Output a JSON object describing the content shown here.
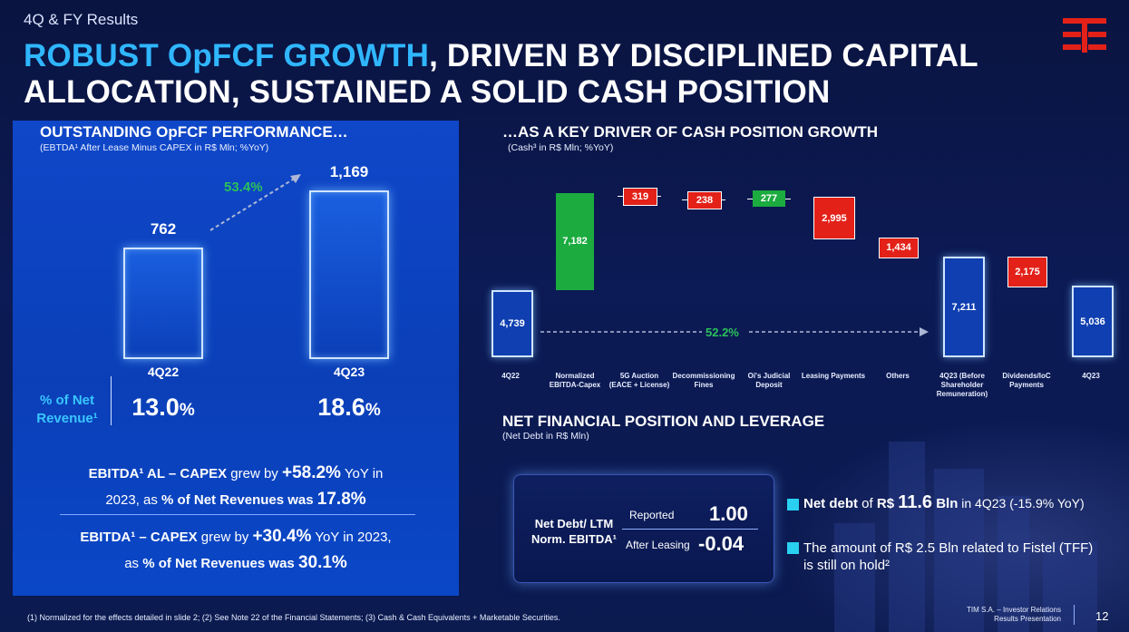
{
  "header": {
    "section": "4Q & FY Results",
    "headline_accent": "ROBUST OpFCF GROWTH",
    "headline_rest_1": ", DRIVEN BY DISCIPLINED CAPITAL",
    "headline_rest_2": "ALLOCATION, SUSTAINED A SOLID CASH POSITION"
  },
  "left": {
    "title": "OUTSTANDING OpFCF PERFORMANCE…",
    "subtitle": "(EBTDA¹ After Lease Minus CAPEX in R$ Mln; %YoY)",
    "growth": "53.4%",
    "pct_label_1": "% of Net",
    "pct_label_2": "Revenue¹",
    "summary1_a": "EBITDA¹ AL – CAPEX",
    "summary1_b": " grew by ",
    "summary1_c": "+58.2%",
    "summary1_d": " YoY in",
    "summary1_e": "2023, as ",
    "summary1_f": "% of Net Revenues was ",
    "summary1_g": "17.8%",
    "summary2_a": "EBITDA¹ – CAPEX",
    "summary2_b": " grew by ",
    "summary2_c": "+30.4%",
    "summary2_d": " YoY in 2023,",
    "summary2_e": "as ",
    "summary2_f": "% of Net Revenues was ",
    "summary2_g": "30.1%"
  },
  "chart_data": [
    {
      "type": "bar",
      "title": "OUTSTANDING OpFCF PERFORMANCE…",
      "categories": [
        "4Q22",
        "4Q23"
      ],
      "values": [
        762,
        1169
      ],
      "value_labels": [
        "762",
        "1,169"
      ],
      "pct_net_revenue": [
        "13.0",
        "18.6"
      ],
      "pct_suffix": "%",
      "yoy": "53.4%"
    },
    {
      "type": "bar",
      "title": "…AS A KEY DRIVER OF CASH POSITION GROWTH",
      "subtitle": "(Cash³ in R$ Mln; %YoY)",
      "subtype": "waterfall",
      "categories": [
        "4Q22",
        "Normalized EBITDA-Capex",
        "5G Auction (EACE + License)",
        "Decommissioning Fines",
        "Oi's Judicial Deposit",
        "Leasing Payments",
        "Others",
        "4Q23 (Before Shareholder Remuneration)",
        "Dividends/IoC Payments",
        "4Q23"
      ],
      "values": [
        4739,
        7182,
        -319,
        -238,
        277,
        -2995,
        -1434,
        7211,
        -2175,
        5036
      ],
      "value_labels": [
        "4,739",
        "7,182",
        "319",
        "238",
        "277",
        "2,995",
        "1,434",
        "7,211",
        "2,175",
        "5,036"
      ],
      "kinds": [
        "total",
        "increase",
        "decrease",
        "decrease",
        "increase",
        "decrease",
        "decrease",
        "total",
        "decrease",
        "total"
      ],
      "yoy": "52.2%"
    }
  ],
  "right": {
    "wf_labels": [
      [
        "4Q22"
      ],
      [
        "Normalized",
        "EBITDA-Capex"
      ],
      [
        "5G Auction",
        "(EACE + License)"
      ],
      [
        "Decommissioning",
        "Fines"
      ],
      [
        "Oi's Judicial",
        "Deposit"
      ],
      [
        "Leasing Payments"
      ],
      [
        "Others"
      ],
      [
        "4Q23 (Before",
        "Shareholder",
        "Remuneration)"
      ],
      [
        "Dividends/IoC",
        "Payments"
      ],
      [
        "4Q23"
      ]
    ],
    "nfp_title": "NET FINANCIAL POSITION AND LEVERAGE",
    "nfp_subtitle": "(Net Debt in R$ Mln)",
    "nfp_label_1": "Net Debt/ LTM",
    "nfp_label_2": "Norm. EBITDA¹",
    "reported_label": "Reported",
    "reported_value": "1.00",
    "after_label": "After Leasing",
    "after_value": "-0.04",
    "bullet1_a": "Net debt",
    "bullet1_b": " of ",
    "bullet1_c": "R$ ",
    "bullet1_d": "11.6",
    "bullet1_e": " Bln",
    "bullet1_f": " in 4Q23 (-15.9% YoY)",
    "bullet2_a": "The amount of R$ 2.5 Bln related to Fistel (TFF)",
    "bullet2_b": "is still on hold²"
  },
  "footer": {
    "notes": "(1)    Normalized for the effects detailed in slide 2; (2) See Note 22 of the Financial Statements; (3) Cash & Cash Equivalents + Marketable Securities.",
    "company_1": "TIM S.A. – Investor Relations",
    "company_2": "Results Presentation",
    "page": "12"
  },
  "colors": {
    "accent": "#2fb6ff",
    "green": "#1bab3f",
    "red": "#e32118",
    "panel": "#0b3fb8",
    "logo": "#e32118"
  }
}
